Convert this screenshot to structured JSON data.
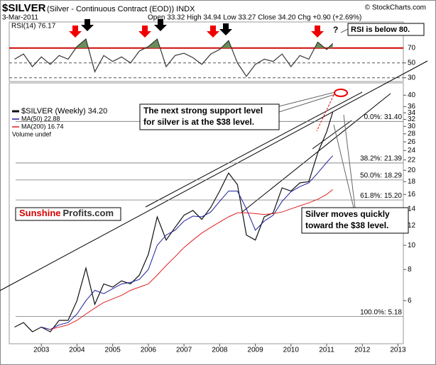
{
  "chart_data": [
    {
      "type": "line",
      "x": [
        2002.25,
        2002.5,
        2002.75,
        2003.0,
        2003.25,
        2003.5,
        2003.75,
        2004.0,
        2004.25,
        2004.5,
        2004.75,
        2005.0,
        2005.25,
        2005.5,
        2005.75,
        2006.0,
        2006.25,
        2006.5,
        2006.75,
        2007.0,
        2007.25,
        2007.5,
        2007.75,
        2008.0,
        2008.25,
        2008.5,
        2008.75,
        2009.0,
        2009.25,
        2009.5,
        2009.75,
        2010.0,
        2010.25,
        2010.5,
        2010.75,
        2011.0,
        2011.17
      ],
      "series": [
        {
          "name": "RSI(14) 76.17",
          "color": "#333333",
          "values": [
            55,
            62,
            45,
            58,
            48,
            60,
            55,
            72,
            82,
            38,
            60,
            52,
            58,
            50,
            66,
            72,
            82,
            45,
            60,
            63,
            57,
            48,
            62,
            68,
            80,
            50,
            32,
            48,
            55,
            52,
            62,
            45,
            60,
            55,
            78,
            68,
            76.17
          ]
        }
      ],
      "xlim": [
        2002.1,
        2013.15
      ],
      "ylim": [
        25,
        105
      ],
      "yticks": [
        30,
        50,
        70
      ],
      "threshold": 70,
      "threshold_color": "#d40000",
      "fill_color": "#6b8e5a",
      "annotations": [
        "RSI is below 80.",
        "?"
      ]
    },
    {
      "type": "line",
      "log_scale": true,
      "title": "$SILVER",
      "subtitle": "(Silver - Continuous Contract (EOD)) INDX",
      "date": "3-Mar-2011",
      "quote": "Open 33.32 High 34.94 Low 33.27 Close 34.20 Chg +0.90 (+2.69%)",
      "source": "© StockCharts.com",
      "x": [
        2002.25,
        2002.5,
        2002.75,
        2003.0,
        2003.25,
        2003.5,
        2003.75,
        2004.0,
        2004.25,
        2004.5,
        2004.75,
        2005.0,
        2005.25,
        2005.5,
        2005.75,
        2006.0,
        2006.25,
        2006.5,
        2006.75,
        2007.0,
        2007.25,
        2007.5,
        2007.75,
        2008.0,
        2008.25,
        2008.5,
        2008.75,
        2009.0,
        2009.25,
        2009.5,
        2009.75,
        2010.0,
        2010.25,
        2010.5,
        2010.75,
        2011.0,
        2011.17
      ],
      "series": [
        {
          "name": "$SILVER (Weekly) 34.20",
          "color": "#111111",
          "values": [
            4.7,
            4.9,
            4.5,
            4.7,
            4.5,
            5.0,
            5.0,
            6.0,
            8.1,
            5.8,
            7.0,
            6.8,
            7.2,
            7.0,
            7.6,
            9.2,
            13.0,
            10.5,
            11.8,
            13.2,
            13.8,
            12.7,
            14.2,
            16.5,
            19.5,
            17.5,
            11.0,
            10.5,
            13.0,
            13.5,
            17.0,
            16.5,
            17.8,
            18.0,
            23.5,
            28.5,
            34.2
          ]
        },
        {
          "name": "MA(50) 22.88",
          "color": "#1c1c9c",
          "values": [
            null,
            null,
            null,
            4.7,
            4.6,
            4.8,
            4.9,
            5.3,
            6.0,
            6.6,
            6.4,
            6.7,
            7.0,
            7.1,
            7.3,
            8.0,
            10.0,
            11.0,
            11.5,
            12.5,
            13.1,
            13.0,
            13.6,
            15.0,
            16.5,
            16.5,
            14.0,
            11.5,
            12.5,
            13.2,
            15.0,
            16.4,
            17.2,
            17.8,
            19.5,
            21.5,
            22.88
          ]
        },
        {
          "name": "MA(200) 16.74",
          "color": "#e02020",
          "values": [
            null,
            null,
            null,
            null,
            4.6,
            4.7,
            4.8,
            5.0,
            5.3,
            5.6,
            5.9,
            6.1,
            6.3,
            6.6,
            6.8,
            7.0,
            7.6,
            8.3,
            9.0,
            9.8,
            10.5,
            11.2,
            11.8,
            12.4,
            13.0,
            13.5,
            13.5,
            13.4,
            13.3,
            13.4,
            13.6,
            14.0,
            14.4,
            14.8,
            15.3,
            16.0,
            16.74
          ]
        }
      ],
      "legend_extra": "Volume undef",
      "xlim": [
        2002.1,
        2013.15
      ],
      "xticks": [
        2003,
        2004,
        2005,
        2006,
        2007,
        2008,
        2009,
        2010,
        2011,
        2012,
        2013
      ],
      "ylim": [
        4.03,
        44.8
      ],
      "yticks": [
        6,
        8,
        10,
        12,
        14,
        16,
        18,
        20,
        22,
        24,
        26,
        28,
        30,
        32,
        34,
        36,
        40
      ],
      "fib_levels": [
        {
          "value": 31.4,
          "label": "0.0%: 31.40"
        },
        {
          "value": 21.39,
          "label": "38.2%: 21.39"
        },
        {
          "value": 18.29,
          "label": "50.0%: 18.29"
        },
        {
          "value": 15.2,
          "label": "61.8%: 15.20"
        },
        {
          "value": 5.18,
          "label": "100.0%: 5.18"
        }
      ],
      "annotations": [
        [
          "The next strong support level",
          "for silver is at the $38 level."
        ],
        [
          "Silver moves quickly",
          "toward the $38 level."
        ]
      ],
      "logo": [
        "Sunshine",
        "Profits.com"
      ]
    }
  ]
}
